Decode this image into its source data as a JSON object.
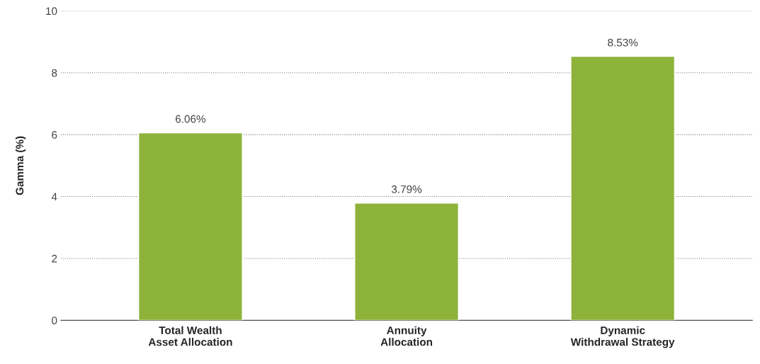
{
  "chart_data": {
    "type": "bar",
    "ylabel": "Gamma (%)",
    "categories": [
      "Total Wealth\nAsset Allocation",
      "Annuity\nAllocation",
      "Dynamic\nWithdrawal Strategy"
    ],
    "values": [
      6.06,
      3.79,
      8.53
    ],
    "value_labels": [
      "6.06%",
      "3.79%",
      "8.53%"
    ],
    "color": "#8db33a",
    "ylim": [
      0,
      10
    ],
    "yticks": [
      0,
      2,
      4,
      6,
      8,
      10
    ],
    "grid": "y"
  }
}
